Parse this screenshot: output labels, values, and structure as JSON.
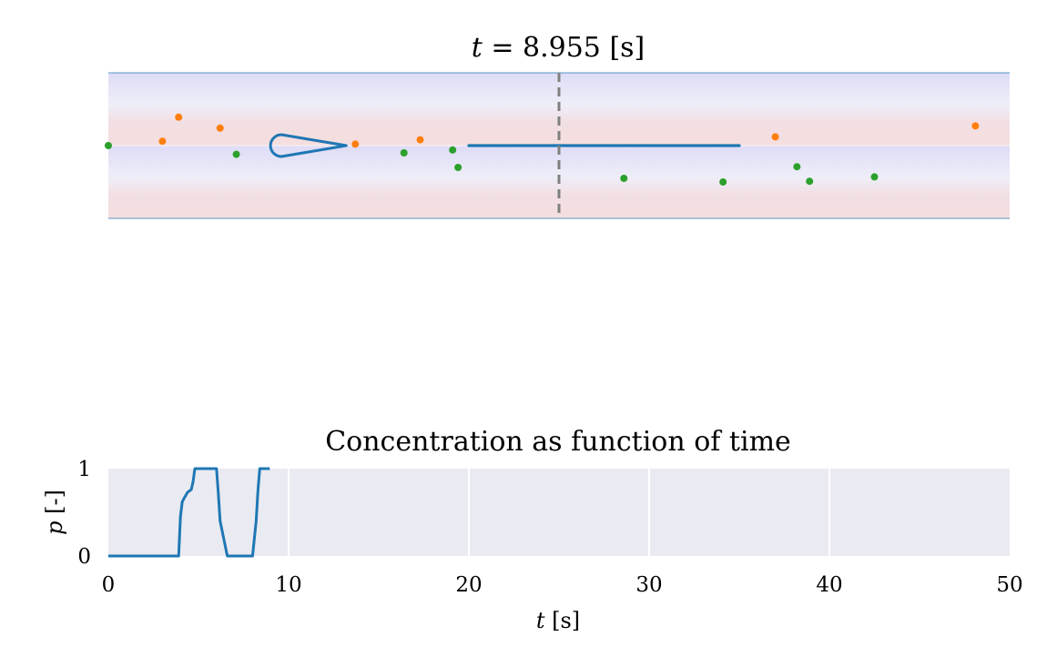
{
  "figure": {
    "top_title_prefix": "t",
    "top_title_eq": " = 8.955 ",
    "top_title_unit": "[s]",
    "bottom_title": "Concentration as function of time",
    "xlabel_var": "t",
    "xlabel_unit": "[s]",
    "ylabel_var": "p",
    "ylabel_unit": "[-]"
  },
  "chart_data": [
    {
      "type": "scatter",
      "title": "t = 8.955 [s]",
      "xlim": [
        0,
        50
      ],
      "ylim": [
        -1,
        1
      ],
      "grid": false,
      "current_x": 25,
      "colors": {
        "orange": "#ff7f0e",
        "green": "#2ca02c",
        "line": "#1f77b4",
        "marker_line": "#808080",
        "band_center": "#f5dede",
        "band_mid": "#dedcf6",
        "band_light": "#eeeef8"
      },
      "series": [
        {
          "color": "orange",
          "points": [
            [
              3.0,
              0.06
            ],
            [
              3.9,
              0.39
            ],
            [
              6.2,
              0.24
            ],
            [
              13.7,
              0.02
            ],
            [
              17.3,
              0.08
            ],
            [
              37.0,
              0.12
            ],
            [
              48.1,
              0.27
            ]
          ]
        },
        {
          "color": "green",
          "points": [
            [
              0.0,
              0.0
            ],
            [
              7.1,
              -0.12
            ],
            [
              16.4,
              -0.1
            ],
            [
              19.1,
              -0.06
            ],
            [
              19.4,
              -0.3
            ],
            [
              28.6,
              -0.45
            ],
            [
              34.1,
              -0.5
            ],
            [
              38.2,
              -0.29
            ],
            [
              38.9,
              -0.49
            ],
            [
              42.5,
              -0.43
            ]
          ]
        }
      ],
      "line_segment": {
        "x": [
          20.0,
          35.0
        ],
        "y": [
          0.0,
          0.0
        ]
      },
      "droplet": {
        "tip_x": 13.2,
        "base_x": 9.4,
        "y": 0.0,
        "half_width": 0.15
      }
    },
    {
      "type": "line",
      "title": "Concentration as function of time",
      "xlabel": "t [s]",
      "ylabel": "p [-]",
      "xlim": [
        0,
        50
      ],
      "ylim": [
        0,
        1
      ],
      "xticks": [
        "0",
        "10",
        "20",
        "30",
        "40",
        "50"
      ],
      "yticks": [
        "0",
        "1"
      ],
      "grid": true,
      "colors": {
        "line": "#1f77b4",
        "background": "#eaeaf2",
        "grid": "#ffffff"
      },
      "series": [
        {
          "x": [
            0.0,
            3.9,
            4.0,
            4.1,
            4.2,
            4.4,
            4.6,
            4.7,
            4.8,
            5.0,
            5.5,
            6.0,
            6.1,
            6.2,
            6.3,
            6.4,
            6.6,
            8.0,
            8.2,
            8.3,
            8.4,
            8.6,
            8.955
          ],
          "y": [
            0.0,
            0.0,
            0.45,
            0.62,
            0.66,
            0.73,
            0.76,
            0.85,
            1.0,
            1.0,
            1.0,
            1.0,
            0.72,
            0.4,
            0.3,
            0.2,
            0.0,
            0.0,
            0.4,
            0.75,
            1.0,
            1.0,
            1.0
          ]
        }
      ]
    }
  ]
}
